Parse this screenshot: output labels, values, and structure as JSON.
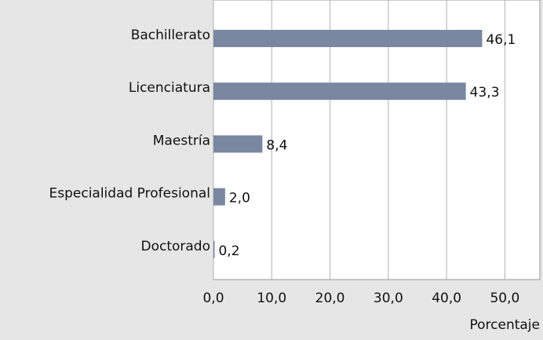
{
  "chart_data": {
    "type": "bar",
    "orientation": "horizontal",
    "categories": [
      "Bachillerato",
      "Licenciatura",
      "Maestría",
      "Especialidad Profesional",
      "Doctorado"
    ],
    "values": [
      46.1,
      43.3,
      8.4,
      2.0,
      0.2
    ],
    "value_labels": [
      "46,1",
      "43,3",
      "8,4",
      "2,0",
      "0,2"
    ],
    "color": "#7a87a0",
    "xlabel": "Porcentaje",
    "xlim": [
      0,
      56
    ],
    "xticks": [
      {
        "value": 0,
        "label": "0,0"
      },
      {
        "value": 10,
        "label": "10,0"
      },
      {
        "value": 20,
        "label": "20,0"
      },
      {
        "value": 30,
        "label": "30,0"
      },
      {
        "value": 40,
        "label": "40,0"
      },
      {
        "value": 50,
        "label": "50,0"
      }
    ],
    "grid": true
  }
}
